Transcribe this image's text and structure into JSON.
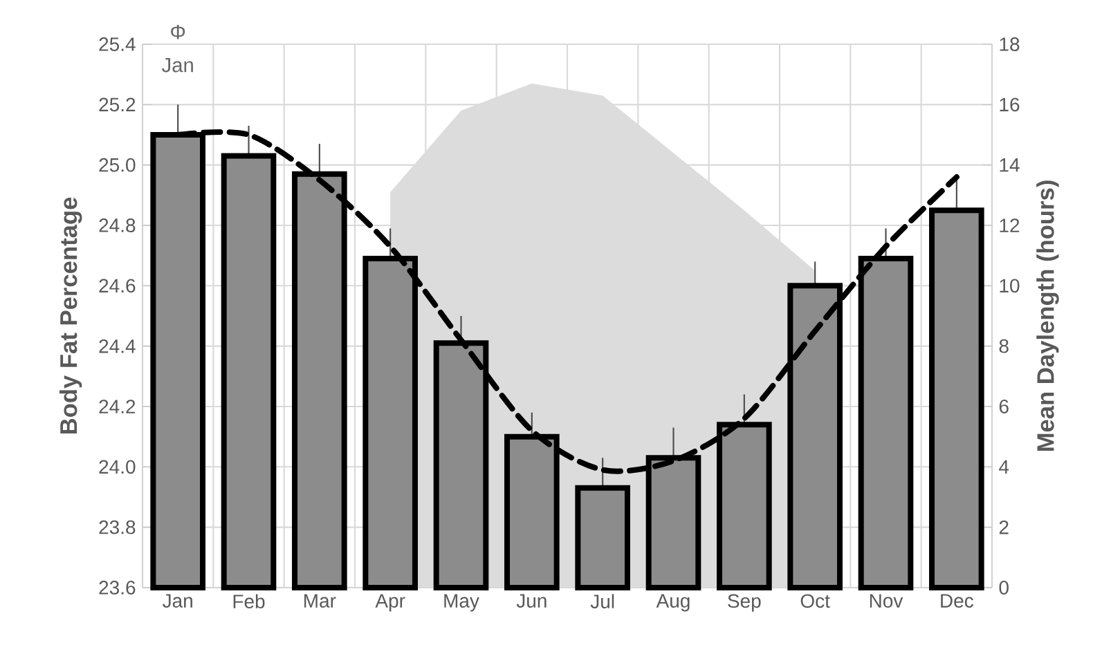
{
  "chart_data": {
    "type": "bar",
    "categories": [
      "Jan",
      "Feb",
      "Mar",
      "Apr",
      "May",
      "Jun",
      "Jul",
      "Aug",
      "Sep",
      "Oct",
      "Nov",
      "Dec"
    ],
    "series": [
      {
        "type": "area",
        "axis": "y2",
        "color": "#dcdcdc",
        "values": [
          null,
          null,
          null,
          13.1,
          15.8,
          16.7,
          16.3,
          14.4,
          12.5,
          10.5,
          null,
          null
        ]
      },
      {
        "color": "#8c8c8c",
        "values": [
          25.1,
          25.03,
          24.97,
          24.69,
          24.41,
          24.1,
          23.93,
          24.03,
          24.14,
          24.6,
          24.69,
          24.85
        ],
        "errors": [
          0.1,
          0.1,
          0.1,
          0.1,
          0.09,
          0.08,
          0.1,
          0.1,
          0.1,
          0.08,
          0.1,
          0.1
        ]
      },
      {
        "type": "line",
        "color": "#000000",
        "line_style": "dashed",
        "values": [
          25.1,
          25.1,
          24.95,
          24.73,
          24.42,
          24.12,
          23.99,
          24.02,
          24.16,
          24.45,
          24.73,
          24.96
        ]
      }
    ],
    "ylim": [
      23.6,
      25.4
    ],
    "yticks": [
      23.6,
      23.8,
      {
        "value": 24.0,
        "label": "24.0"
      },
      24.2,
      24.4,
      24.6,
      24.8,
      {
        "value": 25.0,
        "label": "25.0"
      },
      25.2,
      25.4
    ],
    "y2lim": [
      0,
      18
    ],
    "y2ticks": [
      0,
      2,
      4,
      6,
      8,
      10,
      12,
      14,
      16,
      18
    ],
    "ylabel": "Body Fat Percentage",
    "y2label": "Mean Daylength (hours)",
    "grid": true,
    "annotations": [
      "Φ",
      "Jan"
    ]
  }
}
